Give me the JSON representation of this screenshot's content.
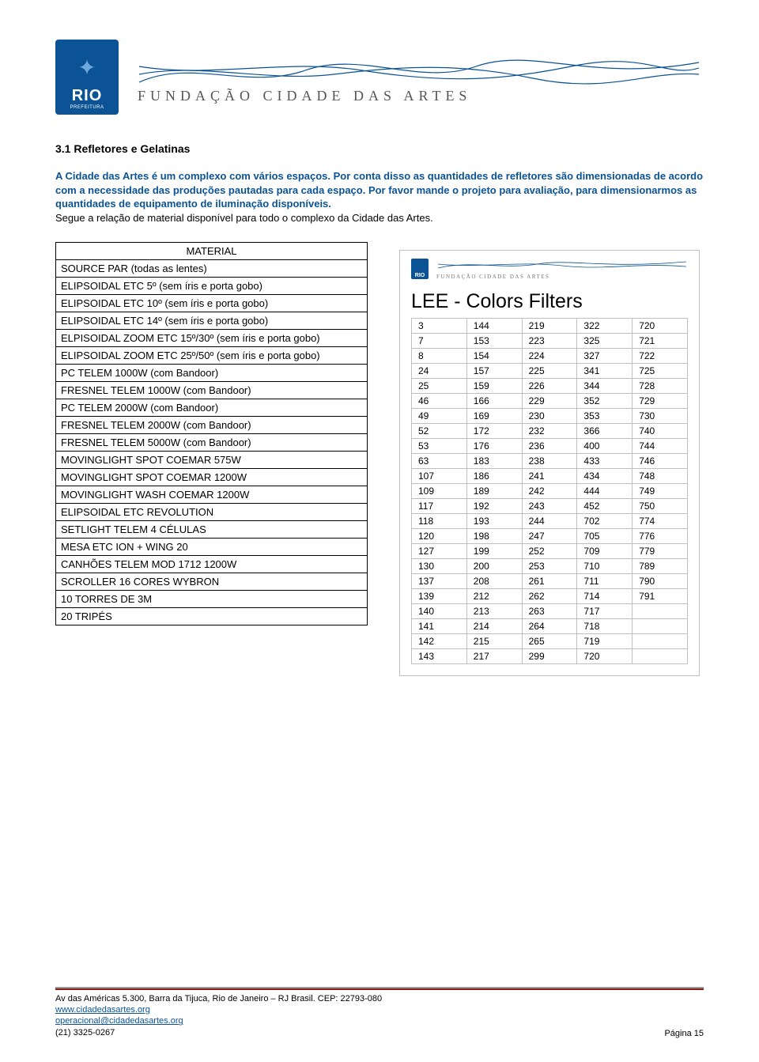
{
  "header": {
    "rio_label": "RIO",
    "rio_sub": "PREFEITURA",
    "fca_text": "FUNDAÇÃO CIDADE DAS ARTES"
  },
  "section_title": "3.1 Refletores e Gelatinas",
  "intro_blue": "A Cidade das Artes é um complexo com vários espaços. Por conta disso as quantidades de refletores são dimensionadas de acordo com a necessidade das produções pautadas para cada espaço. Por favor mande o projeto para avaliação, para dimensionarmos as quantidades de equipamento de iluminação disponíveis.",
  "intro_black": "Segue a relação de material disponível para todo o complexo da Cidade das Artes.",
  "material": {
    "header": "MATERIAL",
    "rows": [
      "SOURCE PAR (todas as lentes)",
      "ELIPSOIDAL ETC 5º (sem íris e porta gobo)",
      "ELIPSOIDAL ETC 10º (sem íris e porta gobo)",
      "ELIPSOIDAL ETC 14º (sem íris e porta gobo)",
      "ELPISOIDAL ZOOM ETC 15º/30º (sem íris e porta gobo)",
      "ELIPSOIDAL ZOOM ETC 25º/50º (sem íris e porta gobo)",
      "PC TELEM 1000W (com Bandoor)",
      "FRESNEL TELEM 1000W (com Bandoor)",
      "PC TELEM 2000W (com Bandoor)",
      "FRESNEL TELEM 2000W (com Bandoor)",
      "FRESNEL TELEM 5000W (com Bandoor)",
      "MOVINGLIGHT SPOT COEMAR 575W",
      "MOVINGLIGHT SPOT COEMAR 1200W",
      "MOVINGLIGHT WASH COEMAR 1200W",
      "ELIPSOIDAL ETC REVOLUTION",
      "SETLIGHT TELEM 4 CÉLULAS",
      "MESA ETC ION + WING 20",
      "CANHÕES TELEM MOD 1712 1200W",
      "SCROLLER 16 CORES WYBRON",
      "10 TORRES DE 3M",
      "20 TRIPÉS"
    ]
  },
  "filters": {
    "title": "LEE - Colors  Filters",
    "mini_rio": "RIO",
    "mini_fca": "FUNDAÇÃO CIDADE DAS ARTES",
    "rows": [
      [
        "3",
        "144",
        "219",
        "322",
        "720"
      ],
      [
        "7",
        "153",
        "223",
        "325",
        "721"
      ],
      [
        "8",
        "154",
        "224",
        "327",
        "722"
      ],
      [
        "24",
        "157",
        "225",
        "341",
        "725"
      ],
      [
        "25",
        "159",
        "226",
        "344",
        "728"
      ],
      [
        "46",
        "166",
        "229",
        "352",
        "729"
      ],
      [
        "49",
        "169",
        "230",
        "353",
        "730"
      ],
      [
        "52",
        "172",
        "232",
        "366",
        "740"
      ],
      [
        "53",
        "176",
        "236",
        "400",
        "744"
      ],
      [
        "63",
        "183",
        "238",
        "433",
        "746"
      ],
      [
        "107",
        "186",
        "241",
        "434",
        "748"
      ],
      [
        "109",
        "189",
        "242",
        "444",
        "749"
      ],
      [
        "117",
        "192",
        "243",
        "452",
        "750"
      ],
      [
        "118",
        "193",
        "244",
        "702",
        "774"
      ],
      [
        "120",
        "198",
        "247",
        "705",
        "776"
      ],
      [
        "127",
        "199",
        "252",
        "709",
        "779"
      ],
      [
        "130",
        "200",
        "253",
        "710",
        "789"
      ],
      [
        "137",
        "208",
        "261",
        "711",
        "790"
      ],
      [
        "139",
        "212",
        "262",
        "714",
        "791"
      ],
      [
        "140",
        "213",
        "263",
        "717",
        ""
      ],
      [
        "141",
        "214",
        "264",
        "718",
        ""
      ],
      [
        "142",
        "215",
        "265",
        "719",
        ""
      ],
      [
        "143",
        "217",
        "299",
        "720",
        ""
      ]
    ]
  },
  "footer": {
    "addr": "Av das Américas 5.300, Barra da Tijuca, Rio de Janeiro – RJ Brasil. CEP: 22793-080",
    "site": "www.cidadedasartes.org",
    "email": "operacional@cidadedasartes.org",
    "phone": "(21) 3325-0267",
    "page": "Página 15"
  },
  "colors": {
    "rio_blue": "#0b5394",
    "link_blue": "#0b5394",
    "footer_bar": "#8b1a1a",
    "border_gray": "#c0c0c0"
  }
}
